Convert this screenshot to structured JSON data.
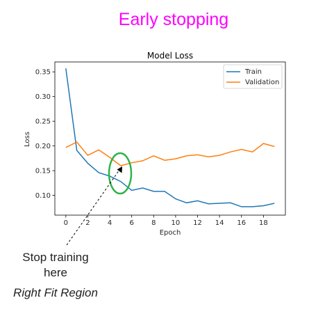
{
  "slide": {
    "title": "Early stopping",
    "title_color": "#ff00ff"
  },
  "chart_data": {
    "type": "line",
    "title": "Model Loss",
    "xlabel": "Epoch",
    "ylabel": "Loss",
    "xlim": [
      -1,
      20
    ],
    "ylim": [
      0.06,
      0.37
    ],
    "xticks": [
      0,
      2,
      4,
      6,
      8,
      10,
      12,
      14,
      16,
      18
    ],
    "yticks": [
      0.1,
      0.15,
      0.2,
      0.25,
      0.3,
      0.35
    ],
    "ytick_labels": [
      "0.10",
      "0.15",
      "0.20",
      "0.25",
      "0.30",
      "0.35"
    ],
    "grid": false,
    "legend_position": "top-right",
    "series": [
      {
        "name": "Train",
        "color": "#1f77b4",
        "x": [
          0,
          1,
          2,
          3,
          4,
          5,
          6,
          7,
          8,
          9,
          10,
          11,
          12,
          13,
          14,
          15,
          16,
          17,
          18,
          19
        ],
        "values": [
          0.357,
          0.191,
          0.165,
          0.146,
          0.139,
          0.128,
          0.11,
          0.115,
          0.108,
          0.108,
          0.093,
          0.085,
          0.089,
          0.083,
          0.084,
          0.085,
          0.077,
          0.077,
          0.079,
          0.084
        ]
      },
      {
        "name": "Validation",
        "color": "#ff7f0e",
        "x": [
          0,
          1,
          2,
          3,
          4,
          5,
          6,
          7,
          8,
          9,
          10,
          11,
          12,
          13,
          14,
          15,
          16,
          17,
          18,
          19
        ],
        "values": [
          0.197,
          0.208,
          0.181,
          0.192,
          0.177,
          0.16,
          0.166,
          0.17,
          0.18,
          0.171,
          0.174,
          0.18,
          0.182,
          0.178,
          0.181,
          0.188,
          0.193,
          0.188,
          0.205,
          0.199
        ]
      }
    ]
  },
  "annotations": {
    "stop_text_line1": "Stop training",
    "stop_text_line2": "here",
    "region_text": "Right Fit Region",
    "ellipse_color": "#2db34a"
  }
}
